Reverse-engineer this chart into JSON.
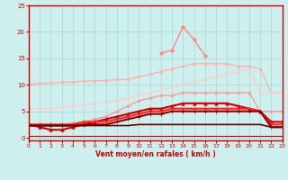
{
  "x": [
    0,
    1,
    2,
    3,
    4,
    5,
    6,
    7,
    8,
    9,
    10,
    11,
    12,
    13,
    14,
    15,
    16,
    17,
    18,
    19,
    20,
    21,
    22,
    23
  ],
  "series": [
    {
      "y": [
        10.0,
        10.3,
        10.3,
        10.5,
        10.5,
        10.7,
        10.8,
        10.8,
        11.0,
        11.0,
        11.5,
        12.0,
        12.5,
        13.0,
        13.5,
        14.0,
        14.0,
        14.0,
        14.0,
        13.5,
        13.5,
        13.0,
        8.5,
        8.5
      ],
      "color": "#ffb0b0",
      "lw": 1.0,
      "marker": "o",
      "ms": 2.0
    },
    {
      "y": [
        5.5,
        5.5,
        5.5,
        5.8,
        6.0,
        6.2,
        6.5,
        6.8,
        7.0,
        7.5,
        8.0,
        8.5,
        9.0,
        9.5,
        10.0,
        10.5,
        11.0,
        11.5,
        12.0,
        12.5,
        13.0,
        8.5,
        8.5,
        8.5
      ],
      "color": "#ffcccc",
      "lw": 1.0,
      "marker": "o",
      "ms": 2.0
    },
    {
      "y": [
        null,
        null,
        null,
        null,
        null,
        null,
        null,
        null,
        null,
        null,
        null,
        null,
        16.0,
        16.5,
        21.0,
        18.5,
        15.5,
        null,
        null,
        null,
        null,
        null,
        null,
        null
      ],
      "color": "#ff8888",
      "lw": 1.0,
      "marker": "o",
      "ms": 2.5
    },
    {
      "y": [
        2.5,
        2.5,
        2.5,
        2.5,
        2.8,
        3.0,
        3.5,
        4.0,
        5.0,
        6.0,
        7.0,
        7.5,
        8.0,
        8.0,
        8.5,
        8.5,
        8.5,
        8.5,
        8.5,
        8.5,
        8.5,
        5.0,
        5.0,
        5.0
      ],
      "color": "#ff9999",
      "lw": 1.0,
      "marker": "o",
      "ms": 2.0
    },
    {
      "y": [
        2.5,
        2.0,
        1.5,
        1.5,
        2.0,
        2.5,
        3.0,
        3.5,
        4.0,
        4.5,
        5.0,
        5.5,
        5.5,
        6.0,
        6.5,
        6.5,
        6.5,
        6.5,
        6.5,
        6.0,
        5.5,
        5.0,
        3.0,
        3.0
      ],
      "color": "#cc0000",
      "lw": 1.5,
      "marker": "^",
      "ms": 2.5
    },
    {
      "y": [
        2.5,
        2.5,
        2.5,
        2.5,
        2.5,
        3.0,
        3.0,
        3.0,
        3.5,
        4.0,
        4.5,
        5.0,
        5.0,
        5.5,
        5.5,
        5.5,
        5.5,
        5.5,
        5.5,
        5.5,
        5.5,
        5.0,
        2.5,
        2.5
      ],
      "color": "#ff2222",
      "lw": 1.5,
      "marker": "+",
      "ms": 3.0
    },
    {
      "y": [
        2.3,
        2.3,
        2.3,
        2.3,
        2.3,
        2.5,
        2.5,
        2.5,
        3.0,
        3.5,
        4.0,
        4.5,
        4.5,
        5.0,
        5.0,
        5.0,
        5.0,
        5.0,
        5.0,
        5.0,
        5.0,
        5.0,
        2.0,
        2.0
      ],
      "color": "#880000",
      "lw": 1.5,
      "marker": "+",
      "ms": 3.0
    },
    {
      "y": [
        2.3,
        2.3,
        2.3,
        2.3,
        2.3,
        2.3,
        2.3,
        2.3,
        2.3,
        2.3,
        2.5,
        2.5,
        2.5,
        2.5,
        2.5,
        2.5,
        2.5,
        2.5,
        2.5,
        2.5,
        2.5,
        2.5,
        2.0,
        2.0
      ],
      "color": "#660000",
      "lw": 1.2,
      "marker": null,
      "ms": 0
    },
    {
      "y": [
        0.3,
        0.3,
        0.3,
        0.3,
        0.3,
        0.3,
        0.3,
        0.3,
        0.3,
        0.3,
        0.3,
        0.3,
        0.3,
        0.3,
        0.3,
        0.3,
        0.3,
        0.3,
        0.3,
        0.3,
        0.3,
        0.3,
        0.3,
        0.3
      ],
      "color": "#cc0000",
      "lw": 0.8,
      "marker": null,
      "ms": 0
    }
  ],
  "xlim": [
    0,
    23
  ],
  "ylim": [
    -0.5,
    25
  ],
  "yticks": [
    0,
    5,
    10,
    15,
    20,
    25
  ],
  "xticks": [
    0,
    1,
    2,
    3,
    4,
    5,
    6,
    7,
    8,
    9,
    10,
    11,
    12,
    13,
    14,
    15,
    16,
    17,
    18,
    19,
    20,
    21,
    22,
    23
  ],
  "xlabel": "Vent moyen/en rafales ( km/h )",
  "bg_color": "#cdf0ee",
  "grid_color": "#aad8d0",
  "axis_color": "#cc0000",
  "tick_color": "#cc0000",
  "label_color": "#cc0000"
}
